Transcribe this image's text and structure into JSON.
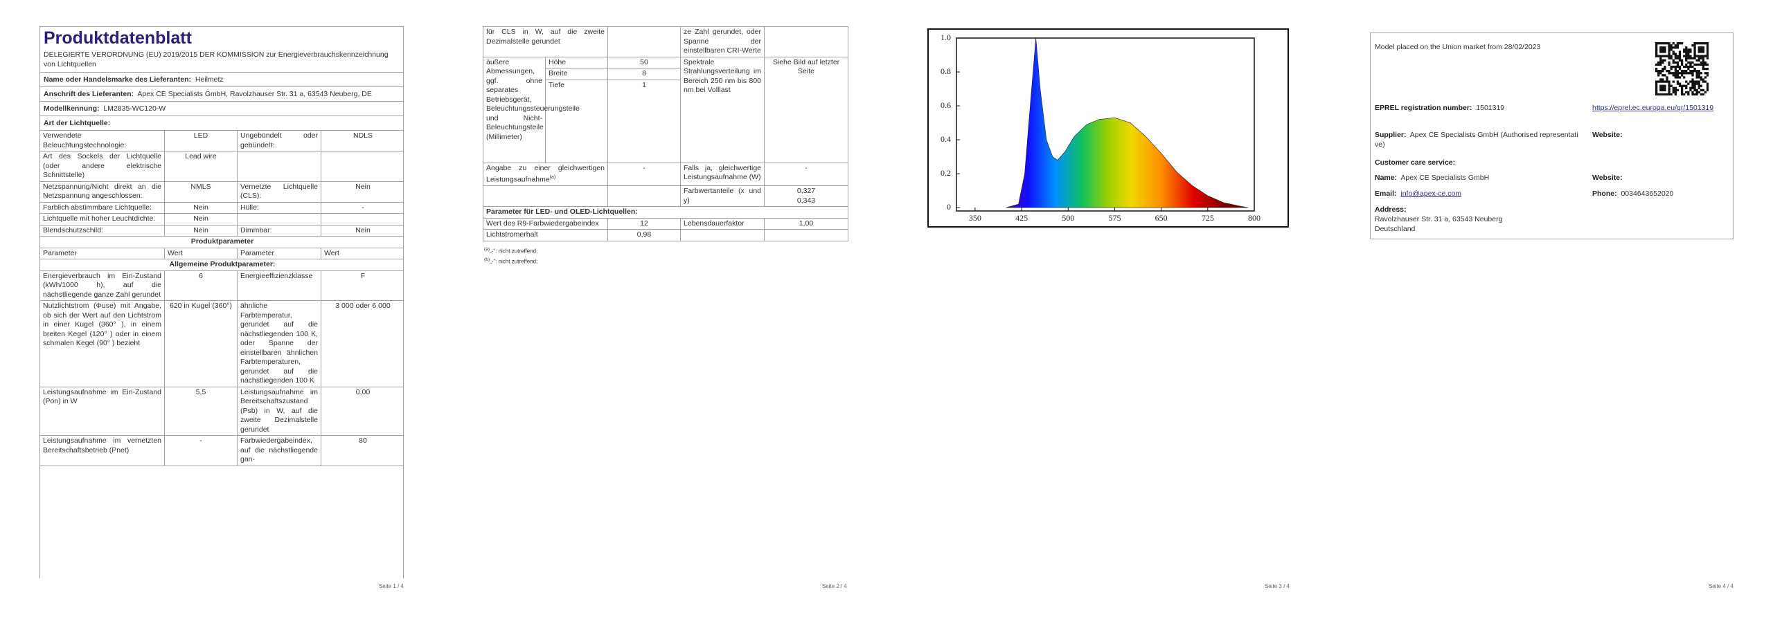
{
  "pages": [
    {
      "title": "Produktdatenblatt",
      "subtitle": "DELEGIERTE VERORDNUNG (EU) 2019/2015 DER KOMMISSION zur Energieverbrauchskennzeichnung von Lichtquellen",
      "fields": [
        {
          "label": "Name oder Handelsmarke des Lieferanten:",
          "value": "Heilmetz"
        },
        {
          "label": "Anschrift des Lieferanten:",
          "value": "Apex CE Specialists GmbH, Ravolzhauser Str. 31 a, 63543 Neuberg, DE"
        },
        {
          "label": "Modellkennung:",
          "value": "LM2835-WC120-W"
        }
      ],
      "section": "Art der Lichtquelle:",
      "type_rows": [
        [
          "Verwendete Beleuchtungstechnologie:",
          "LED",
          "Ungebündelt oder gebündelt:",
          "NDLS"
        ],
        [
          "Art des Sockels der Lichtquelle (oder andere elektrische Schnittstelle)",
          "Lead wire"
        ],
        [
          "Netzspannung/Nicht direkt an die Netzspannung angeschlossen:",
          "NMLS",
          "Vernetzte Lichtquelle (CLS):",
          "Nein"
        ],
        [
          "Farblich abstimmbare Lichtquelle:",
          "Nein",
          "Hülle:",
          "-"
        ],
        [
          "Lichtquelle mit hoher Leuchtdichte:",
          "Nein"
        ],
        [
          "Blendschutzschild:",
          "Nein",
          "Dimmbar:",
          "Nein"
        ]
      ],
      "params_heading": "Produktparameter",
      "columns": [
        "Parameter",
        "Wert",
        "Parameter",
        "Wert"
      ],
      "general_heading": "Allgemeine Produktparameter:",
      "param_rows": [
        [
          "Energieverbrauch im Ein-Zustand (kWh/1000 h), auf die nächstliegende ganze Zahl gerundet",
          "6",
          "Energieeffizienzklasse",
          "F"
        ],
        [
          "Nutzlichtstrom (Φuse) mit Angabe, ob sich der Wert auf den Lichtstrom in einer Kugel (360° ), in einem breiten Kegel (120° ) oder in einem schmalen Kegel (90° ) bezieht",
          "620 in Kugel (360°)",
          "ähnliche Farbtemperatur, gerundet auf die nächstliegenden 100 K, oder Spanne der einstellbaren ähnlichen Farbtemperaturen, gerundet auf die nächstliegenden 100 K",
          "3 000 oder 6 000"
        ],
        [
          "Leistungsaufnahme im Ein-Zustand (Pon) in W",
          "5,5",
          "Leistungsaufnahme im Bereitschaftszustand (Psb) in W, auf die zweite Dezimalstelle gerundet",
          "0,00"
        ],
        [
          "Leistungsaufnahme im vernetzten Bereitschaftsbetrieb (Pnet)",
          "-",
          "Farbwiedergabeindex, auf die nächstliegende gan-",
          "80"
        ]
      ],
      "page_number": "Seite 1 / 4"
    },
    {
      "continued": [
        "für CLS in W, auf die zweite Dezimalstelle gerundet",
        "ze Zahl gerundet, oder Spanne der einstellbaren CRI-Werte"
      ],
      "dimensions": {
        "label": "äußere Abmessungen, ggf. ohne separates Betriebsgerät, Beleuchtungssteuerungsteile und Nicht-Beleuchtungsteile (Millimeter)",
        "items": [
          {
            "name": "Höhe",
            "value": "50"
          },
          {
            "name": "Breite",
            "value": "8"
          },
          {
            "name": "Tiefe",
            "value": "1"
          }
        ],
        "parameter": "Spektrale Strahlungsverteilung im Bereich 250 nm bis 800 nm bei Volllast",
        "parameter_value": "Siehe Bild auf letzter Seite"
      },
      "equivalent": {
        "label": "Angabe zu einer gleichwertigen Leistungsaufnahme",
        "note": "(a)",
        "value": "-",
        "parameter": "Falls ja, gleichwertige Leistungsaufnahme (W)",
        "parameter_value": "-"
      },
      "chromaticity": {
        "label": "Farbwertanteile (x und y)",
        "values": [
          "0,327",
          "0,343"
        ]
      },
      "led_heading": "Parameter für LED- und OLED-Lichtquellen:",
      "led_rows": [
        [
          "Wert des R9-Farbwiedergabeindex",
          "12",
          "Lebensdauerfaktor",
          "1,00"
        ],
        [
          "Lichtstromerhalt",
          "0,98"
        ]
      ],
      "footnotes": [
        {
          "mark": "(a)",
          "text": "„-“: nicht zutreffend;"
        },
        {
          "mark": "(b)",
          "text": "„-“: nicht zutreffend;"
        }
      ],
      "page_number": "Seite 2 / 4"
    },
    {
      "page_number": "Seite 3 / 4"
    },
    {
      "market": "Model placed on the Union market from 28/02/2023",
      "registration": {
        "label": "EPREL registration number:",
        "value": "1501319",
        "link": "https://eprel.ec.europa.eu/qr/1501319"
      },
      "supplier": {
        "label": "Supplier:",
        "value": "Apex CE Specialists GmbH (Authorised representative)",
        "website_label": "Website:"
      },
      "customer_care": "Customer care service:",
      "name": {
        "label": "Name:",
        "value": "Apex CE Specialists GmbH",
        "website_label": "Website:"
      },
      "email": {
        "label": "Email:",
        "value": "info@apex-ce.com"
      },
      "phone": {
        "label": "Phone:",
        "value": "0034643652020"
      },
      "address": {
        "label": "Address:",
        "lines": [
          "Ravolzhauser Str. 31 a, 63543 Neuberg",
          "Deutschland"
        ]
      },
      "page_number": "Seite 4 / 4"
    }
  ],
  "chart_data": {
    "type": "area",
    "x": [
      400,
      420,
      430,
      440,
      448,
      455,
      465,
      475,
      483,
      495,
      510,
      530,
      550,
      575,
      600,
      625,
      650,
      675,
      700,
      725,
      750,
      775,
      790
    ],
    "values": [
      0,
      0.02,
      0.2,
      0.65,
      1.0,
      0.7,
      0.4,
      0.3,
      0.28,
      0.33,
      0.42,
      0.49,
      0.52,
      0.53,
      0.5,
      0.42,
      0.32,
      0.21,
      0.13,
      0.07,
      0.03,
      0.01,
      0
    ],
    "xlim": [
      320,
      800
    ],
    "ylim": [
      -0.02,
      1
    ],
    "xticks": [
      350,
      425,
      500,
      575,
      650,
      725,
      800
    ],
    "yticks": [
      0,
      0.2,
      0.4,
      0.6,
      0.8,
      {
        "value": 1,
        "label": "1.0"
      }
    ]
  }
}
